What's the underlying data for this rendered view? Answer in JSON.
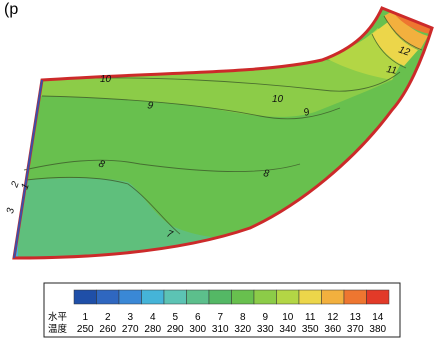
{
  "header": {
    "fragment": "(p"
  },
  "chart_data": {
    "type": "heatmap",
    "title": "",
    "legend": {
      "level_label": "水平",
      "temp_label": "温度",
      "levels": [
        "1",
        "2",
        "3",
        "4",
        "5",
        "6",
        "7",
        "8",
        "9",
        "10",
        "11",
        "12",
        "13",
        "14"
      ],
      "temps": [
        "250",
        "260",
        "270",
        "280",
        "290",
        "300",
        "310",
        "320",
        "330",
        "340",
        "350",
        "360",
        "370",
        "380"
      ],
      "colors": [
        "#1f4fa8",
        "#2f67c0",
        "#3a88d6",
        "#45b4d8",
        "#5cc3b4",
        "#5cbf8c",
        "#54b865",
        "#68c04e",
        "#8ccc48",
        "#b3d645",
        "#ecd64a",
        "#f2b03e",
        "#ee7630",
        "#e23a28"
      ]
    },
    "contour_labels": [
      {
        "text": "1",
        "level": 1
      },
      {
        "text": "2",
        "level": 2
      },
      {
        "text": "3",
        "level": 3
      },
      {
        "text": "7",
        "level": 7
      },
      {
        "text": "8",
        "level": 8
      },
      {
        "text": "8",
        "level": 8
      },
      {
        "text": "9",
        "level": 9
      },
      {
        "text": "9",
        "level": 9
      },
      {
        "text": "10",
        "level": 10
      },
      {
        "text": "10",
        "level": 10
      },
      {
        "text": "11",
        "level": 11
      },
      {
        "text": "12",
        "level": 12
      }
    ]
  }
}
